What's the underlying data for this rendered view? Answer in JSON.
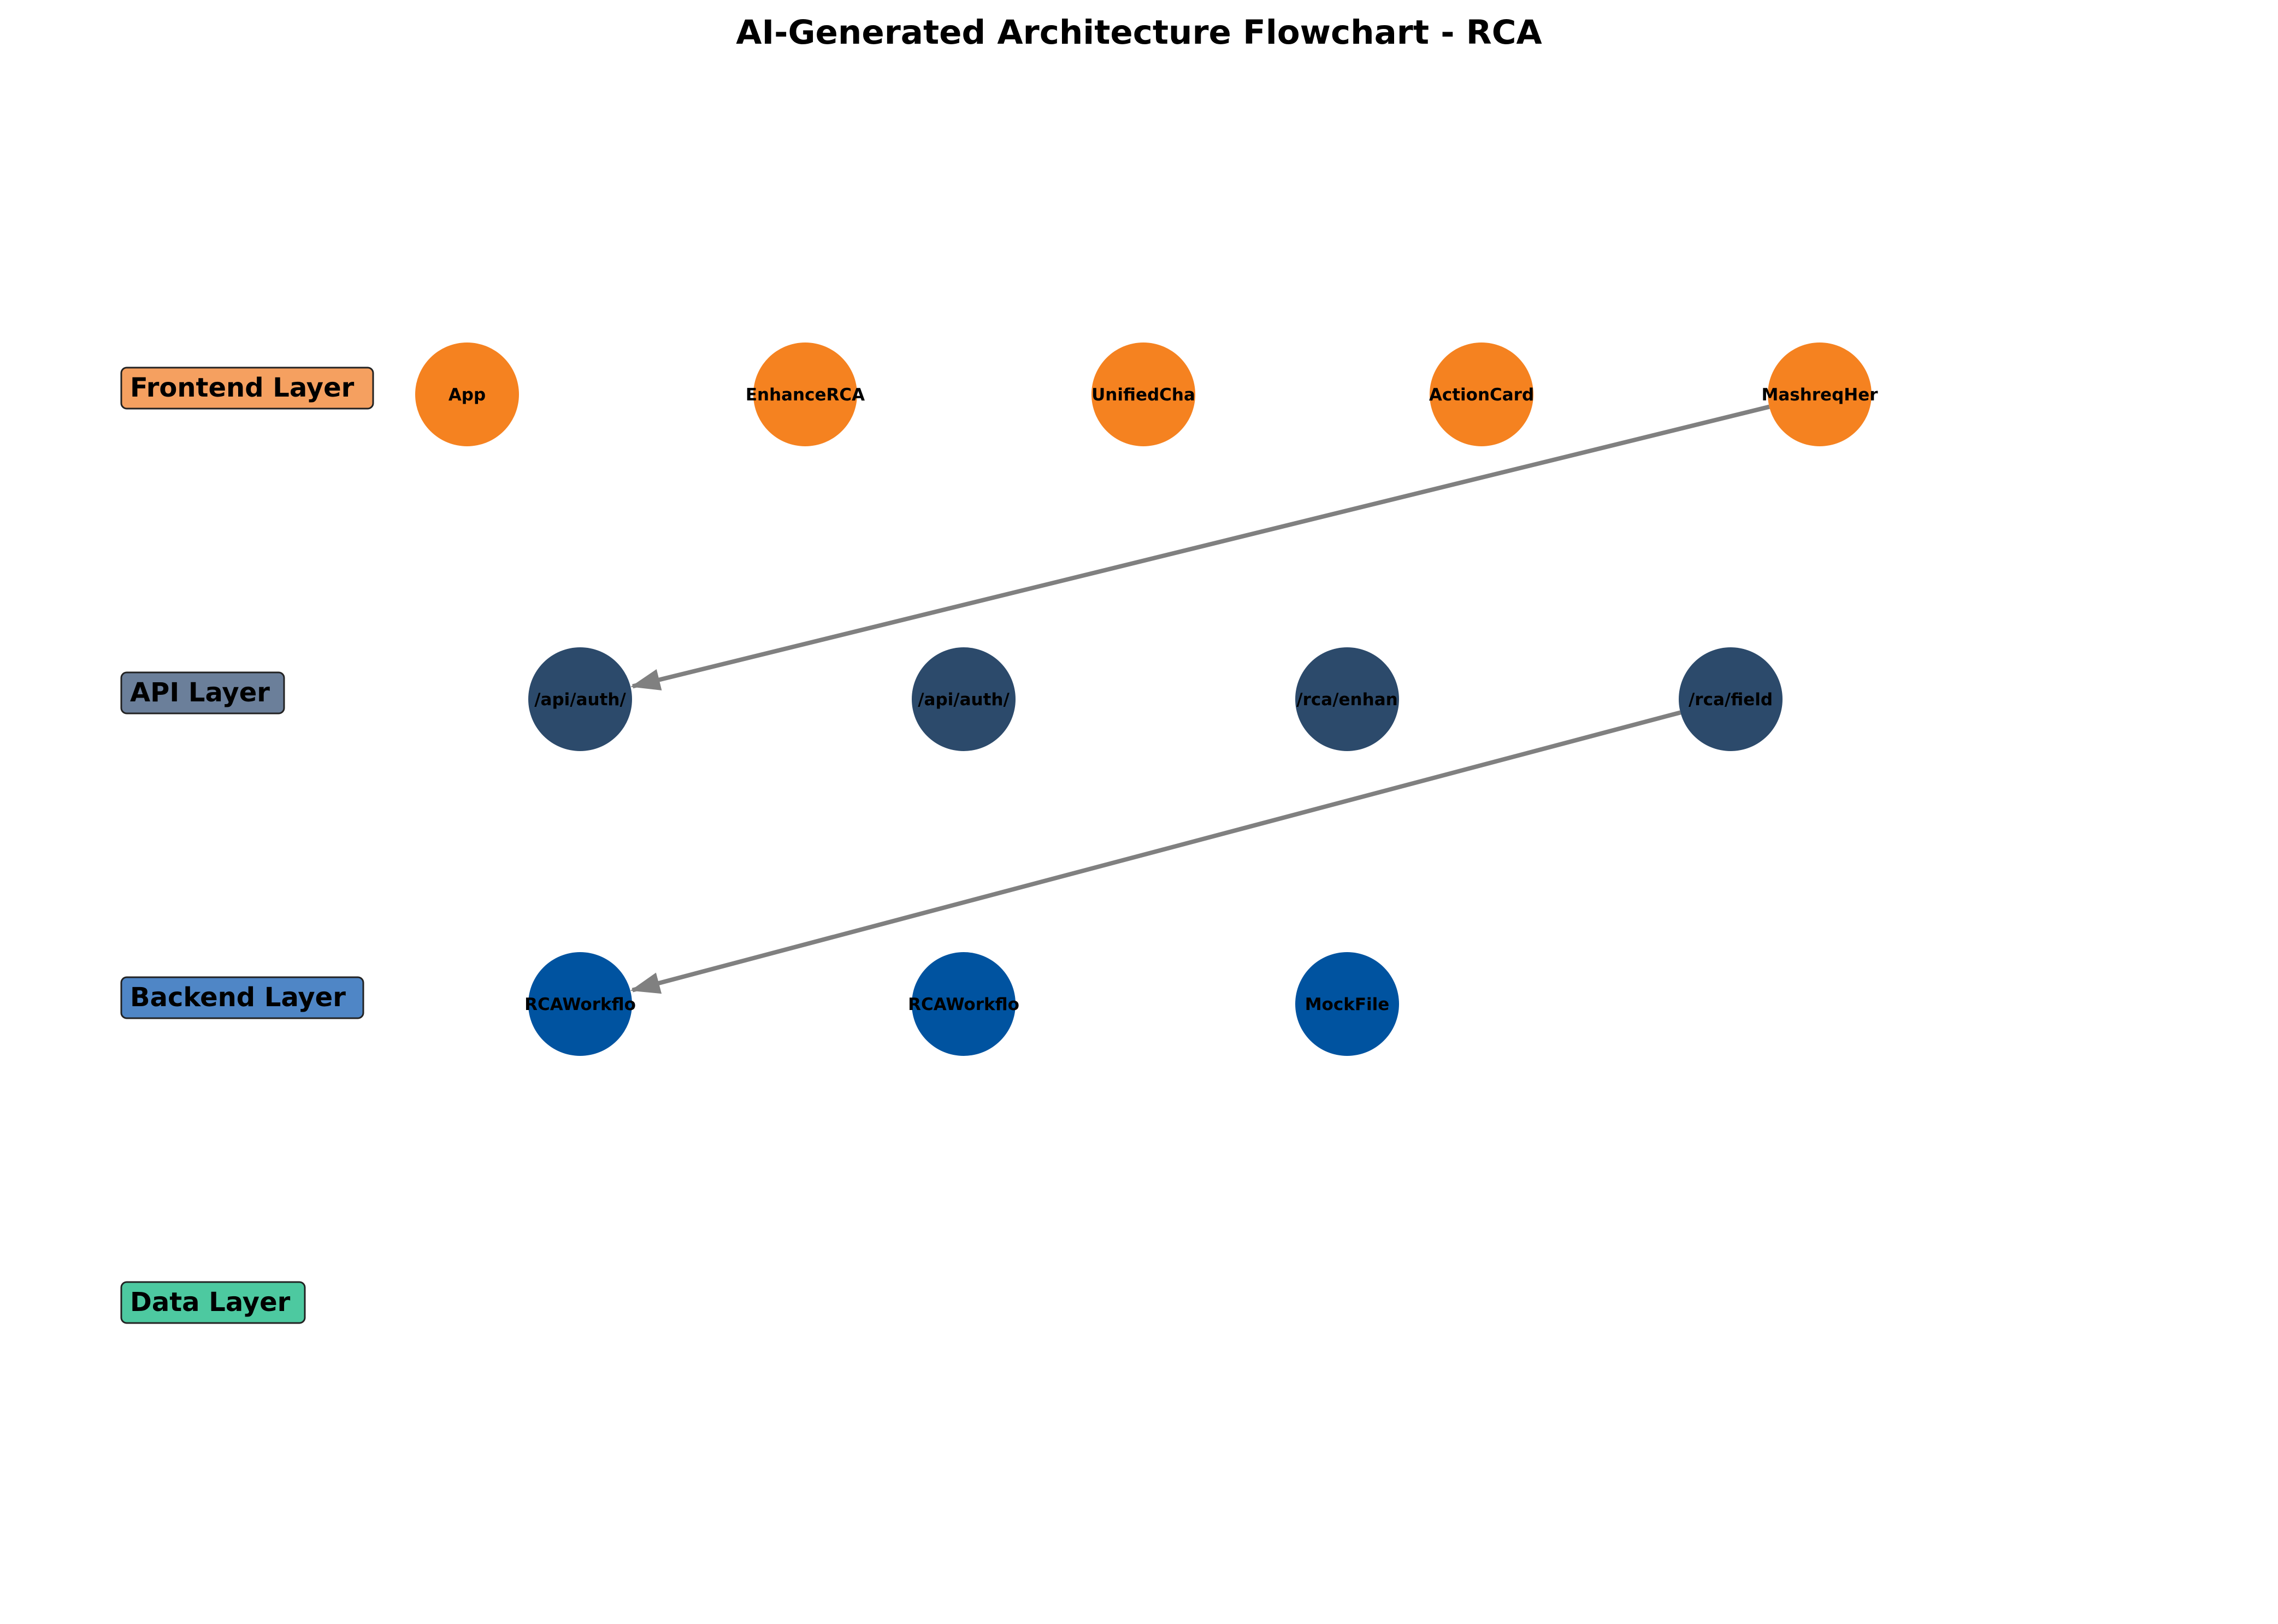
{
  "title": "AI-Generated Architecture Flowchart - RCA",
  "colors": {
    "frontend": "#F58220",
    "api": "#2C4A6B",
    "backend": "#0053A0",
    "edge": "#808080",
    "label_frontend": "#F5A060",
    "label_api": "#6B7F9A",
    "label_backend": "#4F86C6",
    "label_data": "#4DC9A0"
  },
  "layers": [
    {
      "key": "frontend",
      "label": "Frontend Layer"
    },
    {
      "key": "api",
      "label": "API Layer"
    },
    {
      "key": "backend",
      "label": "Backend Layer"
    },
    {
      "key": "data",
      "label": "Data Layer"
    }
  ],
  "nodes": [
    {
      "id": "fe1",
      "layer": "frontend",
      "label": "App"
    },
    {
      "id": "fe2",
      "layer": "frontend",
      "label": "EnhanceRCA"
    },
    {
      "id": "fe3",
      "layer": "frontend",
      "label": "UnifiedCha"
    },
    {
      "id": "fe4",
      "layer": "frontend",
      "label": "ActionCard"
    },
    {
      "id": "fe5",
      "layer": "frontend",
      "label": "MashreqHer"
    },
    {
      "id": "api1",
      "layer": "api",
      "label": "/api/auth/"
    },
    {
      "id": "api2",
      "layer": "api",
      "label": "/api/auth/"
    },
    {
      "id": "api3",
      "layer": "api",
      "label": "/rca/enhan"
    },
    {
      "id": "api4",
      "layer": "api",
      "label": "/rca/field"
    },
    {
      "id": "be1",
      "layer": "backend",
      "label": "RCAWorkflo"
    },
    {
      "id": "be2",
      "layer": "backend",
      "label": "RCAWorkflo"
    },
    {
      "id": "be3",
      "layer": "backend",
      "label": "MockFile"
    }
  ],
  "edges": [
    {
      "from": "fe5",
      "to": "api1"
    },
    {
      "from": "api4",
      "to": "be1"
    }
  ]
}
